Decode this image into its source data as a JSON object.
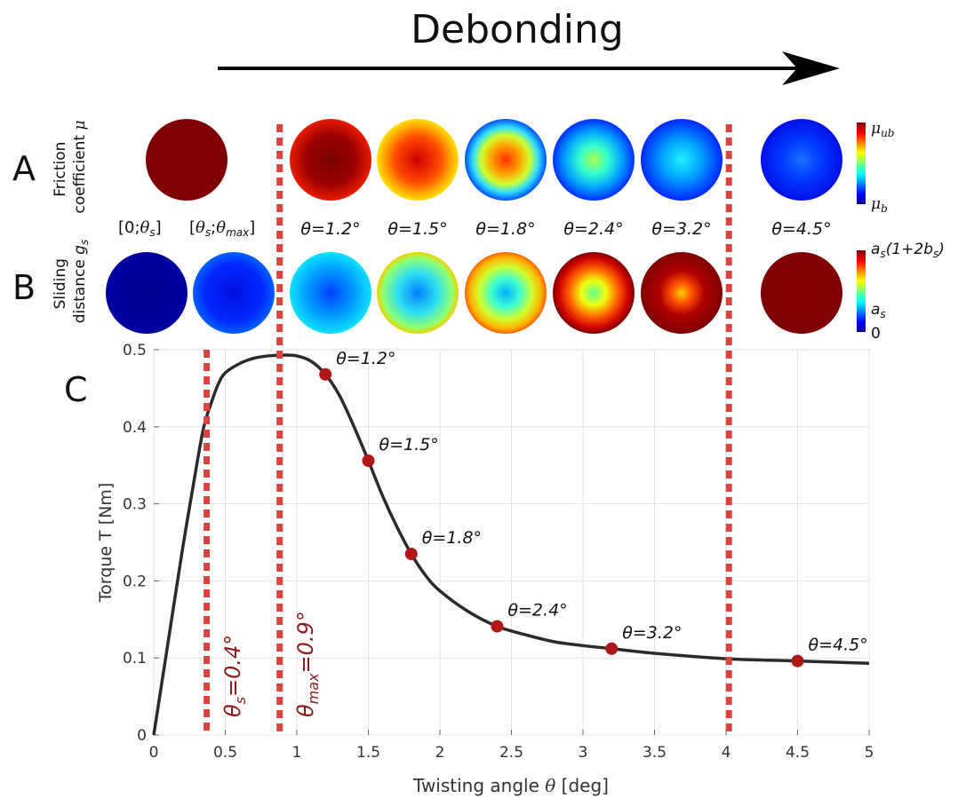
{
  "header": {
    "title": "Debonding"
  },
  "panels": {
    "a": {
      "letter": "A",
      "ylabel": "Friction coefficient μ",
      "colorbar": {
        "top": "μub",
        "bottom": "μb"
      }
    },
    "b": {
      "letter": "B",
      "ylabel": "Sliding distance gs",
      "colorbar": {
        "top": "as(1+2bs)",
        "mid": "as",
        "bottom": "0"
      }
    },
    "c": {
      "letter": "C"
    }
  },
  "range_labels": [
    "[0;θs]",
    "[θs;θmax]"
  ],
  "angle_labels": [
    "θ=1.2°",
    "θ=1.5°",
    "θ=1.8°",
    "θ=2.4°",
    "θ=3.2°",
    "θ=4.5°"
  ],
  "chart_data": {
    "type": "line",
    "xlabel": "Twisting angle θ [deg]",
    "ylabel": "Torque T [Nm]",
    "xlim": [
      0,
      5
    ],
    "ylim": [
      0,
      0.5
    ],
    "xticks": [
      "0",
      "0.5",
      "1",
      "1.5",
      "2",
      "2.5",
      "3",
      "3.5",
      "4",
      "4.5",
      "5"
    ],
    "yticks": [
      "0",
      "0.1",
      "0.2",
      "0.3",
      "0.4",
      "0.5"
    ],
    "grid": true,
    "line_color": "#2b2b2b",
    "marker_color": "#b01818",
    "vline_color": "#d9443f",
    "series": [
      {
        "x": [
          0,
          0.1,
          0.2,
          0.3,
          0.35,
          0.4,
          0.45,
          0.5,
          0.6,
          0.7,
          0.8,
          0.9,
          1.0,
          1.1,
          1.2,
          1.3,
          1.4,
          1.5,
          1.6,
          1.7,
          1.8,
          1.9,
          2.0,
          2.2,
          2.4,
          2.6,
          2.8,
          3.0,
          3.2,
          3.5,
          4.0,
          4.5,
          5.0
        ],
        "values": [
          0,
          0.12,
          0.24,
          0.35,
          0.4,
          0.43,
          0.455,
          0.47,
          0.482,
          0.489,
          0.492,
          0.493,
          0.492,
          0.485,
          0.468,
          0.44,
          0.4,
          0.356,
          0.31,
          0.27,
          0.235,
          0.207,
          0.187,
          0.16,
          0.141,
          0.13,
          0.121,
          0.116,
          0.112,
          0.106,
          0.099,
          0.096,
          0.093
        ]
      }
    ],
    "markers": [
      {
        "x": 1.2,
        "y": 0.468,
        "label": "θ=1.2°"
      },
      {
        "x": 1.5,
        "y": 0.356,
        "label": "θ=1.5°"
      },
      {
        "x": 1.8,
        "y": 0.235,
        "label": "θ=1.8°"
      },
      {
        "x": 2.4,
        "y": 0.141,
        "label": "θ=2.4°"
      },
      {
        "x": 3.2,
        "y": 0.112,
        "label": "θ=3.2°"
      },
      {
        "x": 4.5,
        "y": 0.096,
        "label": "θ=4.5°"
      }
    ],
    "vlines": [
      {
        "x": 0.37,
        "label": "θs=0.4°"
      },
      {
        "x": 0.88,
        "label": "θmax=0.9°"
      },
      {
        "x": 4.02,
        "label": ""
      }
    ]
  }
}
